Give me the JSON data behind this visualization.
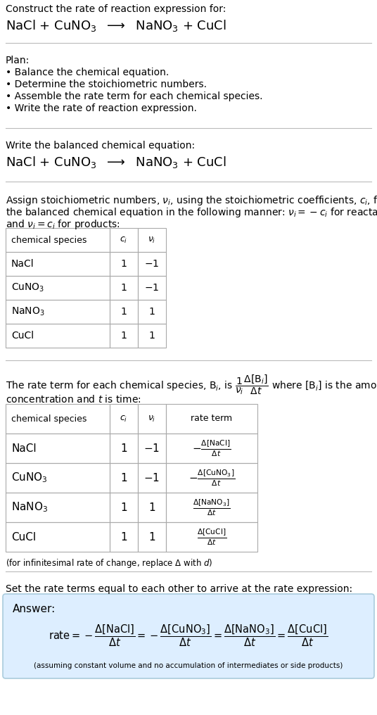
{
  "title_line1": "Construct the rate of reaction expression for:",
  "reaction": "NaCl + CuNO$_3$  $\\longrightarrow$  NaNO$_3$ + CuCl",
  "plan_header": "Plan:",
  "plan_items": [
    "• Balance the chemical equation.",
    "• Determine the stoichiometric numbers.",
    "• Assemble the rate term for each chemical species.",
    "• Write the rate of reaction expression."
  ],
  "sec2_header": "Write the balanced chemical equation:",
  "sec2_eq": "NaCl + CuNO$_3$  $\\longrightarrow$  NaNO$_3$ + CuCl",
  "sec3_text1": "Assign stoichiometric numbers, $\\nu_i$, using the stoichiometric coefficients, $c_i$, from",
  "sec3_text2": "the balanced chemical equation in the following manner: $\\nu_i = -c_i$ for reactants",
  "sec3_text3": "and $\\nu_i = c_i$ for products:",
  "table1_headers": [
    "chemical species",
    "$c_i$",
    "$\\nu_i$"
  ],
  "table1_rows": [
    [
      "NaCl",
      "1",
      "$-1$"
    ],
    [
      "CuNO$_3$",
      "1",
      "$-1$"
    ],
    [
      "NaNO$_3$",
      "1",
      "1"
    ],
    [
      "CuCl",
      "1",
      "1"
    ]
  ],
  "sec4_text1": "The rate term for each chemical species, B$_i$, is $\\dfrac{1}{\\nu_i}\\dfrac{\\Delta[\\mathrm{B}_i]}{\\Delta t}$ where [B$_i$] is the amount",
  "sec4_text2": "concentration and $t$ is time:",
  "table2_headers": [
    "chemical species",
    "$c_i$",
    "$\\nu_i$",
    "rate term"
  ],
  "table2_rows": [
    [
      "NaCl",
      "1",
      "$-1$",
      "$-\\frac{\\Delta[\\mathrm{NaCl}]}{\\Delta t}$"
    ],
    [
      "CuNO$_3$",
      "1",
      "$-1$",
      "$-\\frac{\\Delta[\\mathrm{CuNO}_3]}{\\Delta t}$"
    ],
    [
      "NaNO$_3$",
      "1",
      "1",
      "$\\frac{\\Delta[\\mathrm{NaNO}_3]}{\\Delta t}$"
    ],
    [
      "CuCl",
      "1",
      "1",
      "$\\frac{\\Delta[\\mathrm{CuCl}]}{\\Delta t}$"
    ]
  ],
  "note_infinitesimal": "(for infinitesimal rate of change, replace Δ with $d$)",
  "sec5_text": "Set the rate terms equal to each other to arrive at the rate expression:",
  "answer_label": "Answer:",
  "answer_eq": "$\\mathrm{rate} = -\\dfrac{\\Delta[\\mathrm{NaCl}]}{\\Delta t} = -\\dfrac{\\Delta[\\mathrm{CuNO}_3]}{\\Delta t} = \\dfrac{\\Delta[\\mathrm{NaNO}_3]}{\\Delta t} = \\dfrac{\\Delta[\\mathrm{CuCl}]}{\\Delta t}$",
  "answer_note": "(assuming constant volume and no accumulation of intermediates or side products)",
  "answer_bg": "#ddeeff",
  "answer_border": "#aaccdd",
  "bg": "#ffffff",
  "fg": "#000000",
  "sep_color": "#bbbbbb",
  "table_color": "#aaaaaa"
}
